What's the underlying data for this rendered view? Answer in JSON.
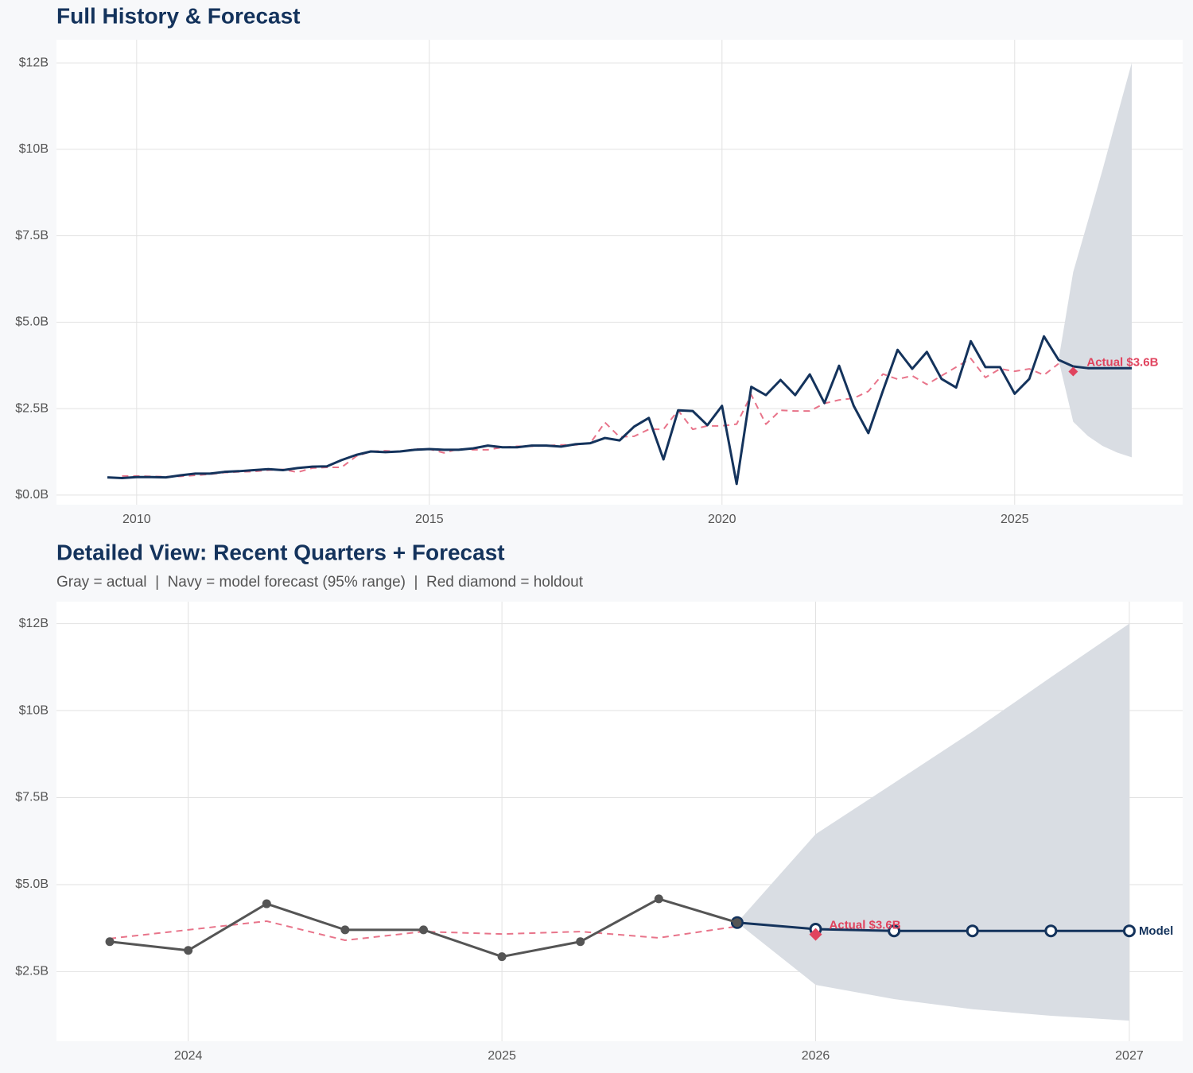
{
  "chart_data": [
    {
      "type": "line",
      "title": "Full History & Forecast",
      "x": [
        2009.5,
        2009.75,
        2010,
        2010.25,
        2010.5,
        2010.75,
        2011,
        2011.25,
        2011.5,
        2011.75,
        2012,
        2012.25,
        2012.5,
        2012.75,
        2013,
        2013.25,
        2013.5,
        2013.75,
        2014,
        2014.25,
        2014.5,
        2014.75,
        2015,
        2015.25,
        2015.5,
        2015.75,
        2016,
        2016.25,
        2016.5,
        2016.75,
        2017,
        2017.25,
        2017.5,
        2017.75,
        2018,
        2018.25,
        2018.5,
        2018.75,
        2019,
        2019.25,
        2019.5,
        2019.75,
        2020,
        2020.25,
        2020.5,
        2020.75,
        2021,
        2021.25,
        2021.5,
        2021.75,
        2022,
        2022.25,
        2022.5,
        2022.75,
        2023,
        2023.25,
        2023.5,
        2023.75,
        2024,
        2024.25,
        2024.5,
        2024.75,
        2025,
        2025.25,
        2025.5,
        2025.75,
        2026,
        2026.25,
        2026.5,
        2026.75,
        2027
      ],
      "series": [
        {
          "color": "#e8748a",
          "dash": true,
          "values": [
            null,
            0.55,
            0.55,
            0.54,
            0.53,
            0.54,
            0.57,
            0.6,
            0.65,
            0.67,
            0.68,
            0.72,
            0.74,
            0.66,
            0.78,
            0.8,
            0.8,
            1.12,
            1.26,
            1.28,
            1.25,
            1.33,
            1.33,
            1.22,
            1.33,
            1.31,
            1.31,
            1.38,
            1.41,
            1.41,
            1.43,
            1.45,
            1.45,
            1.5,
            2.1,
            1.68,
            1.7,
            1.9,
            1.9,
            2.45,
            1.9,
            2.0,
            2.0,
            2.05,
            2.9,
            2.05,
            2.45,
            2.43,
            2.43,
            2.65,
            2.75,
            2.8,
            3.0,
            3.5,
            3.35,
            3.45,
            3.2,
            3.45,
            3.7,
            3.95,
            3.4,
            3.65,
            3.58,
            3.65,
            3.47,
            3.8,
            null,
            null,
            null,
            null,
            null
          ]
        },
        {
          "color": "#14335c",
          "values": [
            0.51,
            0.49,
            0.52,
            0.52,
            0.51,
            0.57,
            0.62,
            0.62,
            0.67,
            0.69,
            0.72,
            0.75,
            0.72,
            0.78,
            0.82,
            0.83,
            1.01,
            1.16,
            1.26,
            1.24,
            1.26,
            1.31,
            1.33,
            1.31,
            1.31,
            1.35,
            1.43,
            1.38,
            1.38,
            1.43,
            1.43,
            1.4,
            1.47,
            1.5,
            1.65,
            1.58,
            1.98,
            2.23,
            1.03,
            2.45,
            2.43,
            2.02,
            2.58,
            0.32,
            3.13,
            2.89,
            3.33,
            2.89,
            3.49,
            2.66,
            3.74,
            2.58,
            1.79,
            3.02,
            4.2,
            3.65,
            4.14,
            3.36,
            3.11,
            4.45,
            3.7,
            3.7,
            2.93,
            3.36,
            4.59,
            3.91,
            3.72,
            3.67,
            3.67,
            3.67,
            3.67
          ]
        }
      ],
      "band": {
        "color": "#d9dde3",
        "lower": [
          null,
          null,
          null,
          null,
          null,
          null,
          null,
          null,
          null,
          null,
          null,
          null,
          null,
          null,
          null,
          null,
          null,
          null,
          null,
          null,
          null,
          null,
          null,
          null,
          null,
          null,
          null,
          null,
          null,
          null,
          null,
          null,
          null,
          null,
          null,
          null,
          null,
          null,
          null,
          null,
          null,
          null,
          null,
          null,
          null,
          null,
          null,
          null,
          null,
          null,
          null,
          null,
          null,
          null,
          null,
          null,
          null,
          null,
          null,
          null,
          null,
          null,
          null,
          null,
          null,
          3.91,
          2.12,
          1.71,
          1.42,
          1.23,
          1.09
        ],
        "upper": [
          null,
          null,
          null,
          null,
          null,
          null,
          null,
          null,
          null,
          null,
          null,
          null,
          null,
          null,
          null,
          null,
          null,
          null,
          null,
          null,
          null,
          null,
          null,
          null,
          null,
          null,
          null,
          null,
          null,
          null,
          null,
          null,
          null,
          null,
          null,
          null,
          null,
          null,
          null,
          null,
          null,
          null,
          null,
          null,
          null,
          null,
          null,
          null,
          null,
          null,
          null,
          null,
          null,
          null,
          null,
          null,
          null,
          null,
          null,
          null,
          null,
          null,
          null,
          null,
          null,
          3.91,
          6.45,
          7.92,
          9.4,
          10.96,
          12.5
        ]
      },
      "holdout": {
        "x": 2026,
        "value": 3.57,
        "label": "Actual $3.6B",
        "color": "#e0435e"
      },
      "xlim": [
        2008.63,
        2027.87
      ],
      "xticks": [
        2010,
        2015,
        2020,
        2025
      ],
      "ylim": [
        -0.28,
        13.17
      ],
      "yticks": [
        {
          "value": 0,
          "label": "$0.0B"
        },
        {
          "value": 2.5,
          "label": "$2.5B"
        },
        {
          "value": 5,
          "label": "$5.0B"
        },
        {
          "value": 7.5,
          "label": "$7.5B"
        },
        {
          "value": 10,
          "label": "$10B"
        },
        {
          "value": 12.5,
          "label": "$12B"
        }
      ],
      "grid": true
    },
    {
      "type": "line",
      "title": "Detailed View: Recent Quarters + Forecast",
      "subtitle": "Gray = actual  |  Navy = model forecast (95% range)  |  Red diamond = holdout",
      "x": [
        2023.75,
        2024,
        2024.25,
        2024.5,
        2024.75,
        2025,
        2025.25,
        2025.5,
        2025.75,
        2026,
        2026.25,
        2026.5,
        2026.75,
        2027
      ],
      "series": [
        {
          "color": "#e8748a",
          "dash": true,
          "values": [
            3.45,
            3.7,
            3.95,
            3.4,
            3.65,
            3.58,
            3.65,
            3.47,
            3.8,
            null,
            null,
            null,
            null,
            null
          ]
        },
        {
          "color": "#14335c",
          "markers": "open",
          "end_label": "Model",
          "values": [
            null,
            null,
            null,
            null,
            null,
            null,
            null,
            null,
            3.91,
            3.72,
            3.67,
            3.67,
            3.67,
            3.67
          ]
        },
        {
          "color": "#555555",
          "markers": "filled",
          "values": [
            3.36,
            3.11,
            4.45,
            3.7,
            3.7,
            2.93,
            3.36,
            4.59,
            3.91,
            null,
            null,
            null,
            null,
            null
          ]
        }
      ],
      "band": {
        "color": "#d9dde3",
        "lower": [
          null,
          null,
          null,
          null,
          null,
          null,
          null,
          null,
          3.91,
          2.12,
          1.71,
          1.42,
          1.23,
          1.09
        ],
        "upper": [
          null,
          null,
          null,
          null,
          null,
          null,
          null,
          null,
          3.91,
          6.45,
          7.92,
          9.4,
          10.96,
          12.5
        ]
      },
      "holdout": {
        "x": 2026,
        "value": 3.57,
        "label": "Actual $3.6B",
        "color": "#e0435e"
      },
      "xlim": [
        2023.58,
        2027.17
      ],
      "xticks": [
        2024,
        2025,
        2026,
        2027
      ],
      "ylim": [
        0.5,
        13.13
      ],
      "yticks": [
        {
          "value": 2.5,
          "label": "$2.5B"
        },
        {
          "value": 5,
          "label": "$5.0B"
        },
        {
          "value": 7.5,
          "label": "$7.5B"
        },
        {
          "value": 10,
          "label": "$10B"
        },
        {
          "value": 12.5,
          "label": "$12B"
        }
      ],
      "grid": true
    }
  ]
}
